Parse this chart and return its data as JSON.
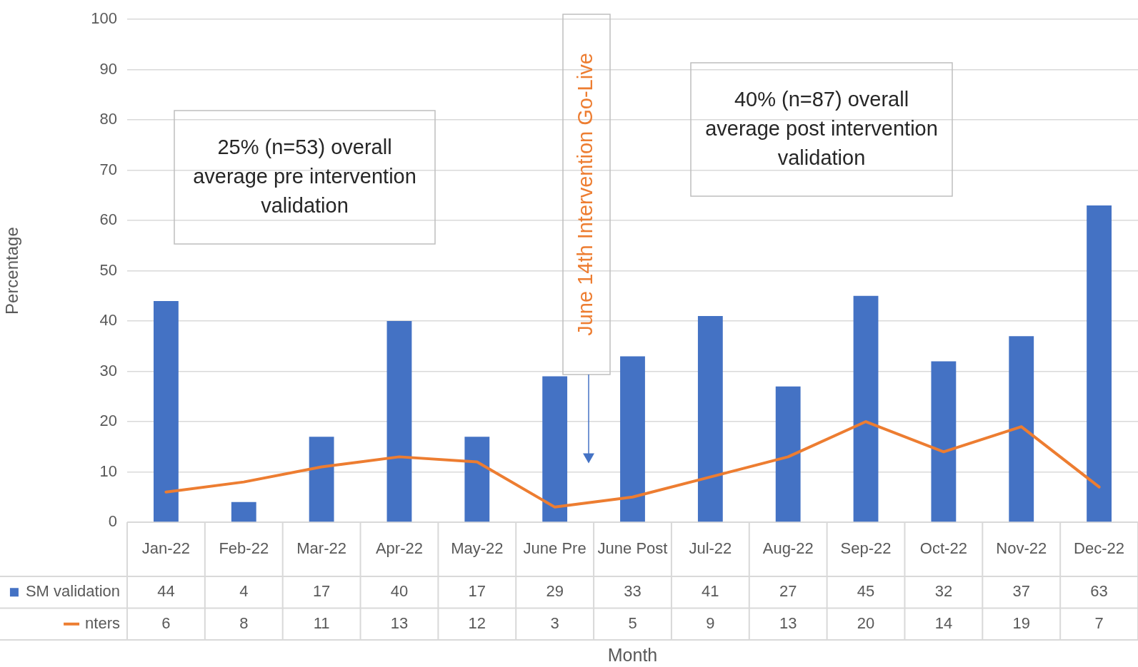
{
  "chart_data": {
    "type": "bar",
    "xlabel": "Month",
    "ylabel": "Percentage",
    "categories": [
      "Jan-22",
      "Feb-22",
      "Mar-22",
      "Apr-22",
      "May-22",
      "June Pre",
      "June Post",
      "Jul-22",
      "Aug-22",
      "Sep-22",
      "Oct-22",
      "Nov-22",
      "Dec-22"
    ],
    "series": [
      {
        "name": "SM validation",
        "color": "#4472c4",
        "values": [
          44,
          4,
          17,
          40,
          17,
          29,
          33,
          41,
          27,
          45,
          32,
          37,
          63
        ]
      },
      {
        "name": "nters",
        "type": "line",
        "color": "#ed7d31",
        "values": [
          6,
          8,
          11,
          13,
          12,
          3,
          5,
          9,
          13,
          20,
          14,
          19,
          7
        ]
      }
    ],
    "ylim": [
      0,
      100
    ],
    "yticks": [
      0,
      10,
      20,
      30,
      40,
      50,
      60,
      70,
      80,
      90,
      100
    ],
    "grid": "y",
    "legend": "bottom left",
    "marker": "none",
    "line_style": "solid",
    "data_labels": true,
    "annotations": [
      "25% (n=53) overall average pre intervention validation",
      "June 14th Intervention Go-Live",
      "40% (n=87) overall average post intervention validation"
    ]
  }
}
